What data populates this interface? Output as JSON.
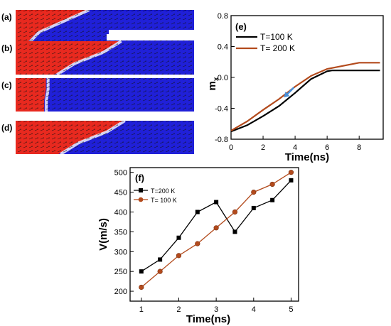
{
  "panels": [
    {
      "label": "(a)",
      "red_width": [
        0.4,
        0.26,
        0.12,
        0.06
      ]
    },
    {
      "label": "(b)",
      "red_width": [
        0.58,
        0.48,
        0.32,
        0.22
      ]
    },
    {
      "label": "(c)",
      "red_width": [
        0.17,
        0.17,
        0.16,
        0.16
      ]
    },
    {
      "label": "(d)",
      "red_width": [
        0.6,
        0.5,
        0.34,
        0.24
      ]
    }
  ],
  "colors": {
    "red": "#e8291f",
    "blue": "#2020d8",
    "black": "#000000",
    "brown": "#b34a1c"
  },
  "chart_data": [
    {
      "id": "e",
      "type": "line",
      "panel_label": "(e)",
      "xlabel": "Time(ns)",
      "ylabel": "m",
      "ylabel_sub": "x",
      "xlim": [
        0,
        9.5
      ],
      "ylim": [
        -0.8,
        0.8
      ],
      "xticks": [
        0,
        2,
        4,
        6,
        8
      ],
      "yticks": [
        -0.8,
        -0.4,
        0.0,
        0.4,
        0.8
      ],
      "ytick_labels": [
        "-0.8",
        "-0.4",
        "0.0",
        "0.4",
        "0.8"
      ],
      "legend_position": "top-left",
      "series": [
        {
          "name": "T=100 K",
          "color": "#000000",
          "x": [
            0,
            1,
            2,
            3,
            4,
            5,
            6,
            6.3,
            9.3
          ],
          "y": [
            -0.7,
            -0.62,
            -0.5,
            -0.37,
            -0.2,
            -0.02,
            0.08,
            0.09,
            0.09
          ]
        },
        {
          "name": "T= 200 K",
          "color": "#b34a1c",
          "x": [
            0,
            1,
            2,
            3,
            4,
            5,
            6,
            7,
            8,
            9.3
          ],
          "y": [
            -0.69,
            -0.57,
            -0.42,
            -0.28,
            -0.12,
            0.02,
            0.11,
            0.15,
            0.19,
            0.19
          ]
        }
      ],
      "annotation": {
        "type": "arrow",
        "x": 3.3,
        "y": -0.26,
        "color": "#4a90d9"
      }
    },
    {
      "id": "f",
      "type": "line",
      "panel_label": "(f)",
      "xlabel": "Time(ns)",
      "ylabel": "V(m/s)",
      "xlim": [
        0.7,
        5.2
      ],
      "ylim": [
        175,
        512
      ],
      "xticks": [
        1,
        2,
        3,
        4,
        5
      ],
      "yticks": [
        200,
        250,
        300,
        350,
        400,
        450,
        500
      ],
      "legend_position": "top-left",
      "series": [
        {
          "name": "T=200 K",
          "color": "#000000",
          "marker": "square",
          "x": [
            1,
            1.5,
            2,
            2.5,
            3,
            3.5,
            4,
            4.5,
            5
          ],
          "y": [
            250,
            280,
            335,
            400,
            425,
            350,
            410,
            430,
            480
          ]
        },
        {
          "name": "T= 100 K",
          "color": "#b34a1c",
          "marker": "circle",
          "x": [
            1,
            1.5,
            2,
            2.5,
            3,
            3.5,
            4,
            4.5,
            5
          ],
          "y": [
            210,
            250,
            290,
            320,
            360,
            400,
            450,
            470,
            500
          ]
        }
      ]
    }
  ]
}
